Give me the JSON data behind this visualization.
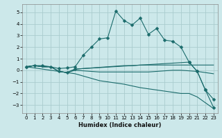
{
  "title": "",
  "xlabel": "Humidex (Indice chaleur)",
  "ylabel": "",
  "background_color": "#cce8ea",
  "grid_color": "#aaccce",
  "line_color": "#1a6b6b",
  "xlim": [
    -0.5,
    23.5
  ],
  "ylim": [
    -3.7,
    5.7
  ],
  "yticks": [
    -3,
    -2,
    -1,
    0,
    1,
    2,
    3,
    4,
    5
  ],
  "xticks": [
    0,
    1,
    2,
    3,
    4,
    5,
    6,
    7,
    8,
    9,
    10,
    11,
    12,
    13,
    14,
    15,
    16,
    17,
    18,
    19,
    20,
    21,
    22,
    23
  ],
  "lines": [
    {
      "x": [
        0,
        1,
        2,
        3,
        4,
        5,
        6,
        7,
        8,
        9,
        10,
        11,
        12,
        13,
        14,
        15,
        16,
        17,
        18,
        19,
        20,
        21,
        22,
        23
      ],
      "y": [
        0.3,
        0.4,
        0.4,
        0.3,
        0.15,
        0.2,
        0.3,
        1.3,
        2.0,
        2.7,
        2.8,
        5.1,
        4.3,
        3.9,
        4.5,
        3.1,
        3.6,
        2.6,
        2.5,
        2.0,
        0.7,
        -0.1,
        -1.7,
        -2.5
      ],
      "marker": "D",
      "markersize": 2.5,
      "has_marker": true
    },
    {
      "x": [
        0,
        1,
        2,
        3,
        4,
        5,
        6,
        7,
        8,
        9,
        10,
        11,
        12,
        13,
        14,
        15,
        16,
        17,
        18,
        19,
        20,
        21,
        22,
        23
      ],
      "y": [
        0.3,
        0.4,
        0.3,
        0.3,
        -0.1,
        -0.2,
        0.1,
        0.15,
        0.2,
        0.25,
        0.3,
        0.35,
        0.4,
        0.4,
        0.45,
        0.45,
        0.45,
        0.45,
        0.45,
        0.45,
        0.45,
        0.45,
        0.45,
        0.45
      ],
      "marker": null,
      "markersize": 0,
      "has_marker": false
    },
    {
      "x": [
        0,
        1,
        2,
        3,
        4,
        5,
        6,
        7,
        8,
        9,
        10,
        11,
        12,
        13,
        14,
        15,
        16,
        17,
        18,
        19,
        20,
        21,
        22,
        23
      ],
      "y": [
        0.3,
        0.4,
        0.3,
        0.3,
        -0.1,
        -0.2,
        0.0,
        -0.05,
        -0.1,
        -0.15,
        -0.15,
        -0.15,
        -0.15,
        -0.15,
        -0.15,
        -0.15,
        -0.1,
        -0.05,
        0.0,
        0.0,
        -0.05,
        -0.1,
        -0.2,
        -0.3
      ],
      "marker": null,
      "markersize": 0,
      "has_marker": false
    },
    {
      "x": [
        0,
        1,
        2,
        3,
        4,
        5,
        6,
        7,
        8,
        9,
        10,
        11,
        12,
        13,
        14,
        15,
        16,
        17,
        18,
        19,
        20,
        21,
        22,
        23
      ],
      "y": [
        0.3,
        0.4,
        0.3,
        0.3,
        -0.1,
        -0.2,
        -0.3,
        -0.5,
        -0.7,
        -0.9,
        -1.0,
        -1.1,
        -1.2,
        -1.35,
        -1.5,
        -1.6,
        -1.7,
        -1.8,
        -1.9,
        -2.0,
        -2.0,
        -2.3,
        -2.8,
        -3.3
      ],
      "marker": null,
      "markersize": 0,
      "has_marker": false
    },
    {
      "x": [
        0,
        4,
        5,
        6,
        20,
        21,
        22,
        23
      ],
      "y": [
        0.3,
        -0.1,
        -0.2,
        0.1,
        0.7,
        -0.1,
        -1.7,
        -3.2
      ],
      "marker": "D",
      "markersize": 2.5,
      "has_marker": true
    }
  ]
}
